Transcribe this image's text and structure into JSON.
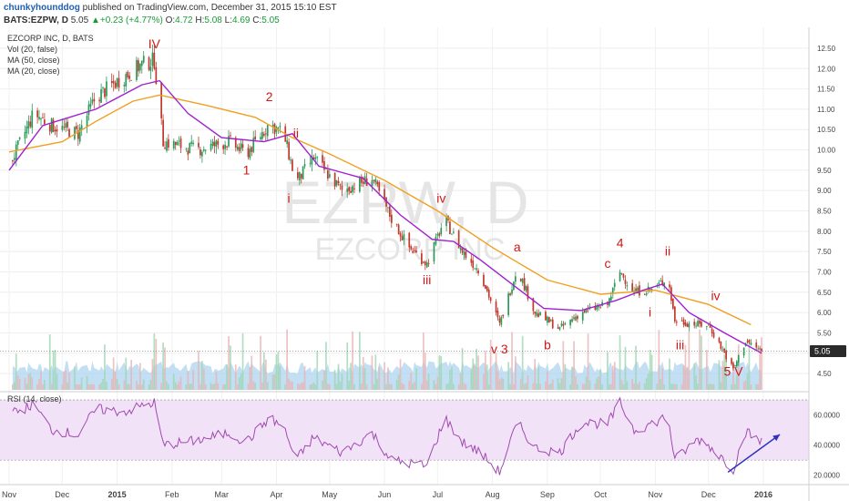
{
  "header": {
    "author": "chunkyhounddog",
    "published": "published on TradingView.com, December 31, 2015 15:10 EST",
    "symbol": "BATS:EZPW, D",
    "last": "5.05",
    "change_arrow": "▲",
    "change": "+0.23 (+4.77%)",
    "o_label": "O:",
    "o": "4.72",
    "h_label": "H:",
    "h": "5.08",
    "l_label": "L:",
    "l": "4.69",
    "c_label": "C:",
    "c": "5.05"
  },
  "legend": [
    "EZCORP INC, D, BATS",
    "Vol (20, false)",
    "MA (50, close)",
    "MA (20, close)"
  ],
  "watermark": {
    "ticker": "EZPW, D",
    "name": "EZCORP INC"
  },
  "price_badge": "5.05",
  "rsi_label": "RSI (14, close)",
  "colors": {
    "up": "#2a9a5a",
    "down": "#c0392b",
    "ma50": "#f0a020",
    "ma20": "#a020d0",
    "rsi": "#a04ab0",
    "rsi_fill": "#f2e2f7",
    "vol_area": "#aed4ef",
    "wave": "#d01818",
    "arrow": "#3030c0"
  },
  "chart_data": [
    {
      "type": "candlestick",
      "title": "EZCORP INC, D, BATS",
      "x_ticks": [
        "Nov",
        "Dec",
        "2015",
        "Feb",
        "Mar",
        "Apr",
        "May",
        "Jun",
        "Jul",
        "Aug",
        "Sep",
        "Oct",
        "Nov",
        "Dec",
        "2016"
      ],
      "y_ticks": [
        "12.50",
        "12.00",
        "11.50",
        "11.00",
        "10.50",
        "10.00",
        "9.50",
        "9.00",
        "8.50",
        "8.00",
        "7.50",
        "7.00",
        "6.50",
        "6.00",
        "5.50",
        "5.00",
        "4.50"
      ],
      "ylim": [
        4.3,
        12.7
      ],
      "price_path": [
        [
          "2014-11-01",
          9.6
        ],
        [
          "2014-11-15",
          10.9
        ],
        [
          "2014-11-25",
          10.6
        ],
        [
          "2014-12-10",
          10.4
        ],
        [
          "2014-12-20",
          11.3
        ],
        [
          "2015-01-05",
          11.8
        ],
        [
          "2015-01-15",
          12.1
        ],
        [
          "2015-01-22",
          12.2
        ],
        [
          "2015-01-27",
          10.2
        ],
        [
          "2015-02-15",
          10.0
        ],
        [
          "2015-03-05",
          10.2
        ],
        [
          "2015-03-15",
          9.9
        ],
        [
          "2015-03-28",
          10.65
        ],
        [
          "2015-04-05",
          10.4
        ],
        [
          "2015-04-12",
          9.2
        ],
        [
          "2015-04-22",
          9.8
        ],
        [
          "2015-05-08",
          9.0
        ],
        [
          "2015-05-25",
          9.3
        ],
        [
          "2015-06-05",
          8.3
        ],
        [
          "2015-06-15",
          7.6
        ],
        [
          "2015-06-25",
          7.2
        ],
        [
          "2015-07-05",
          8.3
        ],
        [
          "2015-07-15",
          7.5
        ],
        [
          "2015-07-25",
          7.0
        ],
        [
          "2015-08-05",
          5.7
        ],
        [
          "2015-08-15",
          7.1
        ],
        [
          "2015-08-25",
          6.0
        ],
        [
          "2015-09-08",
          5.6
        ],
        [
          "2015-09-20",
          6.0
        ],
        [
          "2015-10-05",
          6.2
        ],
        [
          "2015-10-12",
          7.0
        ],
        [
          "2015-10-20",
          6.5
        ],
        [
          "2015-11-01",
          6.6
        ],
        [
          "2015-11-08",
          6.9
        ],
        [
          "2015-11-12",
          5.8
        ],
        [
          "2015-11-25",
          5.7
        ],
        [
          "2015-12-01",
          5.7
        ],
        [
          "2015-12-10",
          5.0
        ],
        [
          "2015-12-15",
          4.6
        ],
        [
          "2015-12-22",
          5.3
        ],
        [
          "2015-12-31",
          5.05
        ]
      ],
      "ma50_path": [
        [
          "2014-11-01",
          9.95
        ],
        [
          "2014-12-01",
          10.2
        ],
        [
          "2014-12-20",
          10.7
        ],
        [
          "2015-01-10",
          11.2
        ],
        [
          "2015-01-25",
          11.35
        ],
        [
          "2015-02-20",
          11.1
        ],
        [
          "2015-03-20",
          10.8
        ],
        [
          "2015-04-10",
          10.3
        ],
        [
          "2015-05-01",
          9.9
        ],
        [
          "2015-06-01",
          9.25
        ],
        [
          "2015-07-01",
          8.5
        ],
        [
          "2015-08-01",
          7.6
        ],
        [
          "2015-09-01",
          6.8
        ],
        [
          "2015-10-01",
          6.45
        ],
        [
          "2015-11-01",
          6.55
        ],
        [
          "2015-12-01",
          6.2
        ],
        [
          "2015-12-25",
          5.7
        ]
      ],
      "ma20_path": [
        [
          "2014-11-01",
          9.5
        ],
        [
          "2014-11-20",
          10.6
        ],
        [
          "2014-12-20",
          11.0
        ],
        [
          "2015-01-15",
          11.6
        ],
        [
          "2015-01-25",
          11.7
        ],
        [
          "2015-02-10",
          10.9
        ],
        [
          "2015-03-01",
          10.3
        ],
        [
          "2015-03-25",
          10.2
        ],
        [
          "2015-04-10",
          10.4
        ],
        [
          "2015-04-25",
          9.6
        ],
        [
          "2015-05-20",
          9.3
        ],
        [
          "2015-06-10",
          8.4
        ],
        [
          "2015-06-28",
          7.8
        ],
        [
          "2015-07-10",
          7.75
        ],
        [
          "2015-07-25",
          7.3
        ],
        [
          "2015-08-15",
          6.6
        ],
        [
          "2015-08-30",
          6.1
        ],
        [
          "2015-09-20",
          6.05
        ],
        [
          "2015-10-10",
          6.3
        ],
        [
          "2015-10-25",
          6.55
        ],
        [
          "2015-11-05",
          6.7
        ],
        [
          "2015-11-20",
          6.0
        ],
        [
          "2015-12-10",
          5.5
        ],
        [
          "2015-12-31",
          5.0
        ]
      ],
      "wave_labels": [
        {
          "text": "IV",
          "date": "2015-01-22",
          "price": 12.5
        },
        {
          "text": "2",
          "date": "2015-03-28",
          "price": 11.2
        },
        {
          "text": "1",
          "date": "2015-03-15",
          "price": 9.4
        },
        {
          "text": "ii",
          "date": "2015-04-12",
          "price": 10.3
        },
        {
          "text": "i",
          "date": "2015-04-08",
          "price": 8.7
        },
        {
          "text": "iv",
          "date": "2015-07-03",
          "price": 8.7
        },
        {
          "text": "iii",
          "date": "2015-06-25",
          "price": 6.7
        },
        {
          "text": "a",
          "date": "2015-08-15",
          "price": 7.5
        },
        {
          "text": "v 3",
          "date": "2015-08-05",
          "price": 5.0
        },
        {
          "text": "b",
          "date": "2015-09-01",
          "price": 5.1
        },
        {
          "text": "4",
          "date": "2015-10-12",
          "price": 7.6
        },
        {
          "text": "c",
          "date": "2015-10-05",
          "price": 7.1
        },
        {
          "text": "ii",
          "date": "2015-11-08",
          "price": 7.4
        },
        {
          "text": "i",
          "date": "2015-10-29",
          "price": 5.9
        },
        {
          "text": "iv",
          "date": "2015-12-05",
          "price": 6.3
        },
        {
          "text": "iii",
          "date": "2015-11-15",
          "price": 5.1
        },
        {
          "text": "5 V",
          "date": "2015-12-15",
          "price": 4.45
        }
      ]
    },
    {
      "type": "line",
      "title": "RSI (14, close)",
      "y_ticks": [
        "60.0000",
        "40.0000",
        "20.0000"
      ],
      "ylim": [
        15,
        73
      ],
      "band": [
        30,
        70
      ],
      "rsi_path": [
        [
          "2014-11-01",
          60
        ],
        [
          "2014-11-15",
          67
        ],
        [
          "2014-11-25",
          50
        ],
        [
          "2014-12-10",
          47
        ],
        [
          "2014-12-20",
          64
        ],
        [
          "2015-01-05",
          62
        ],
        [
          "2015-01-15",
          66
        ],
        [
          "2015-01-22",
          68
        ],
        [
          "2015-01-27",
          40
        ],
        [
          "2015-02-15",
          43
        ],
        [
          "2015-03-05",
          48
        ],
        [
          "2015-03-15",
          42
        ],
        [
          "2015-03-28",
          58
        ],
        [
          "2015-04-05",
          52
        ],
        [
          "2015-04-12",
          30
        ],
        [
          "2015-04-22",
          45
        ],
        [
          "2015-05-08",
          35
        ],
        [
          "2015-05-25",
          48
        ],
        [
          "2015-06-05",
          30
        ],
        [
          "2015-06-15",
          28
        ],
        [
          "2015-06-25",
          26
        ],
        [
          "2015-07-05",
          58
        ],
        [
          "2015-07-15",
          42
        ],
        [
          "2015-07-25",
          35
        ],
        [
          "2015-08-05",
          22
        ],
        [
          "2015-08-15",
          55
        ],
        [
          "2015-08-25",
          38
        ],
        [
          "2015-09-08",
          35
        ],
        [
          "2015-09-20",
          55
        ],
        [
          "2015-10-05",
          54
        ],
        [
          "2015-10-12",
          68
        ],
        [
          "2015-10-20",
          50
        ],
        [
          "2015-11-01",
          55
        ],
        [
          "2015-11-08",
          60
        ],
        [
          "2015-11-12",
          30
        ],
        [
          "2015-11-25",
          44
        ],
        [
          "2015-12-01",
          40
        ],
        [
          "2015-12-10",
          30
        ],
        [
          "2015-12-15",
          24
        ],
        [
          "2015-12-22",
          49
        ],
        [
          "2015-12-31",
          42
        ]
      ],
      "trend_arrow": [
        [
          "2015-12-12",
          22
        ],
        [
          "2015-12-31",
          47
        ]
      ]
    }
  ]
}
